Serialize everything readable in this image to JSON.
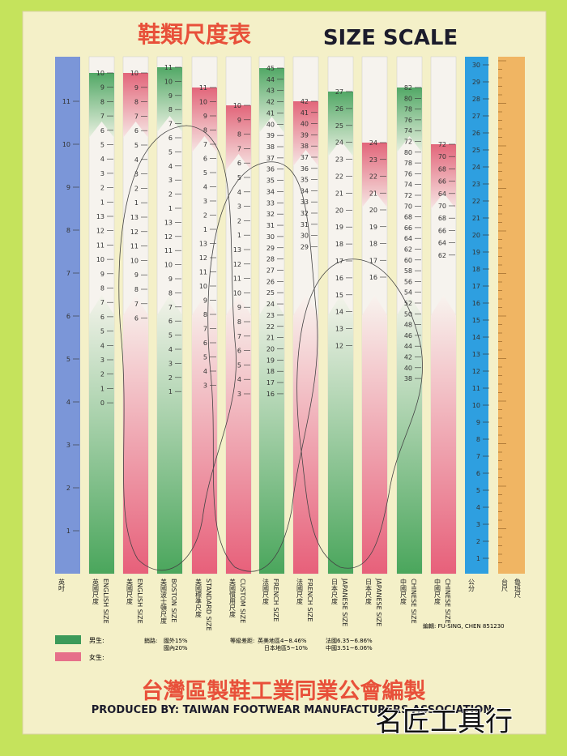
{
  "header": {
    "title_cn": "鞋類尺度表",
    "title_en": "SIZE SCALE"
  },
  "columns": [
    {
      "label_cn": "英吋",
      "numbers": [
        11,
        10,
        9,
        8,
        7,
        6,
        5,
        4,
        3,
        2,
        1
      ]
    },
    {
      "label_cn": "英國尺度",
      "label_en": "ENGLISH SIZE",
      "numbers": [
        10,
        9,
        8,
        7,
        6,
        5,
        4,
        3,
        2,
        1,
        13,
        12,
        11,
        10,
        9,
        8,
        7,
        6,
        5,
        4,
        3,
        2,
        1,
        0
      ]
    },
    {
      "label_cn": "美國尺度",
      "label_en": "ENGLISH SIZE",
      "numbers": [
        10,
        9,
        8,
        7,
        6,
        5,
        4,
        3,
        2,
        1,
        13,
        12,
        11,
        10,
        9,
        8,
        7,
        6
      ]
    },
    {
      "label_cn": "美國波士頓尺度",
      "label_en": "BOSTON SIZE",
      "numbers": [
        11,
        10,
        9,
        8,
        7,
        6,
        5,
        4,
        3,
        2,
        1,
        13,
        12,
        11,
        10,
        9,
        8,
        7,
        6,
        5,
        4,
        3,
        2,
        1
      ]
    },
    {
      "label_cn": "美國標準尺度",
      "label_en": "STANDARD SIZE",
      "numbers": [
        11,
        10,
        9,
        8,
        7,
        6,
        5,
        4,
        3,
        2,
        1,
        13,
        12,
        11,
        10,
        9,
        8,
        7,
        6,
        5,
        4,
        3
      ]
    },
    {
      "label_cn": "美國慣用尺度",
      "label_en": "CUSTOM SIZE",
      "numbers": [
        10,
        9,
        8,
        7,
        6,
        5,
        4,
        3,
        2,
        1,
        13,
        12,
        11,
        10,
        9,
        8,
        7,
        6,
        5,
        4,
        3
      ]
    },
    {
      "label_cn": "法國尺度",
      "label_en": "FRENCH SIZE",
      "numbers": [
        45,
        44,
        43,
        42,
        41,
        40,
        39,
        38,
        37,
        36,
        35,
        34,
        33,
        32,
        31,
        30,
        29,
        28,
        27,
        26,
        25,
        24,
        23,
        22,
        21,
        20,
        19,
        18,
        17,
        16
      ]
    },
    {
      "label_cn": "法國尺度",
      "label_en": "FRENCH SIZE",
      "numbers": [
        42,
        41,
        40,
        39,
        38,
        37,
        36,
        35,
        34,
        33,
        32,
        31,
        30,
        29
      ]
    },
    {
      "label_cn": "日本尺度",
      "label_en": "JAPANESE SIZE",
      "numbers": [
        27,
        26,
        25,
        24,
        23,
        22,
        21,
        20,
        19,
        18,
        17,
        16,
        15,
        14,
        13,
        12
      ]
    },
    {
      "label_cn": "日本尺度",
      "label_en": "JAPANESE SIZE",
      "numbers": [
        24,
        23,
        22,
        21,
        20,
        19,
        18,
        17,
        16
      ]
    },
    {
      "label_cn": "中國尺度",
      "label_en": "CHINESE SIZE",
      "numbers": [
        82,
        80,
        78,
        76,
        74,
        72,
        80,
        78,
        76,
        74,
        72,
        70,
        68,
        66,
        64,
        62,
        60,
        58,
        56,
        54,
        52,
        50,
        48,
        46,
        44,
        42,
        40,
        38
      ]
    },
    {
      "label_cn": "中國尺度",
      "label_en": "CHINESE SIZE",
      "numbers": [
        72,
        70,
        68,
        66,
        64,
        70,
        68,
        66,
        64,
        62
      ]
    },
    {
      "label_cn": "公分",
      "numbers": [
        30,
        29,
        28,
        27,
        26,
        25,
        24,
        23,
        22,
        21,
        20,
        19,
        18,
        17,
        16,
        15,
        14,
        13,
        12,
        11,
        10,
        9,
        8,
        7,
        6,
        5,
        4,
        3,
        2,
        1
      ]
    },
    {
      "label_cn": "台尺",
      "label_extra": "魯班尺"
    }
  ],
  "legend": {
    "male": "男生:",
    "female": "女生:"
  },
  "notes": {
    "sales_label": "銷路:",
    "sales_1": "國外15%",
    "sales_2": "國內20%",
    "grade_label": "等級差距:",
    "grade_1": "英美地區4~8.46%",
    "grade_2": "日本地區5~10%",
    "grade_3": "法國6.35~6.86%",
    "grade_4": "中國3.51~6.06%"
  },
  "credit": "編輯: FU-SING, CHEN 851230",
  "footer": {
    "cn": "台灣區製鞋工業同業公會編製",
    "en": "PRODUCED BY: TAIWAN FOOTWEAR MANUFACTURERS ASSOCIATION"
  },
  "watermark": "名匠工具行"
}
